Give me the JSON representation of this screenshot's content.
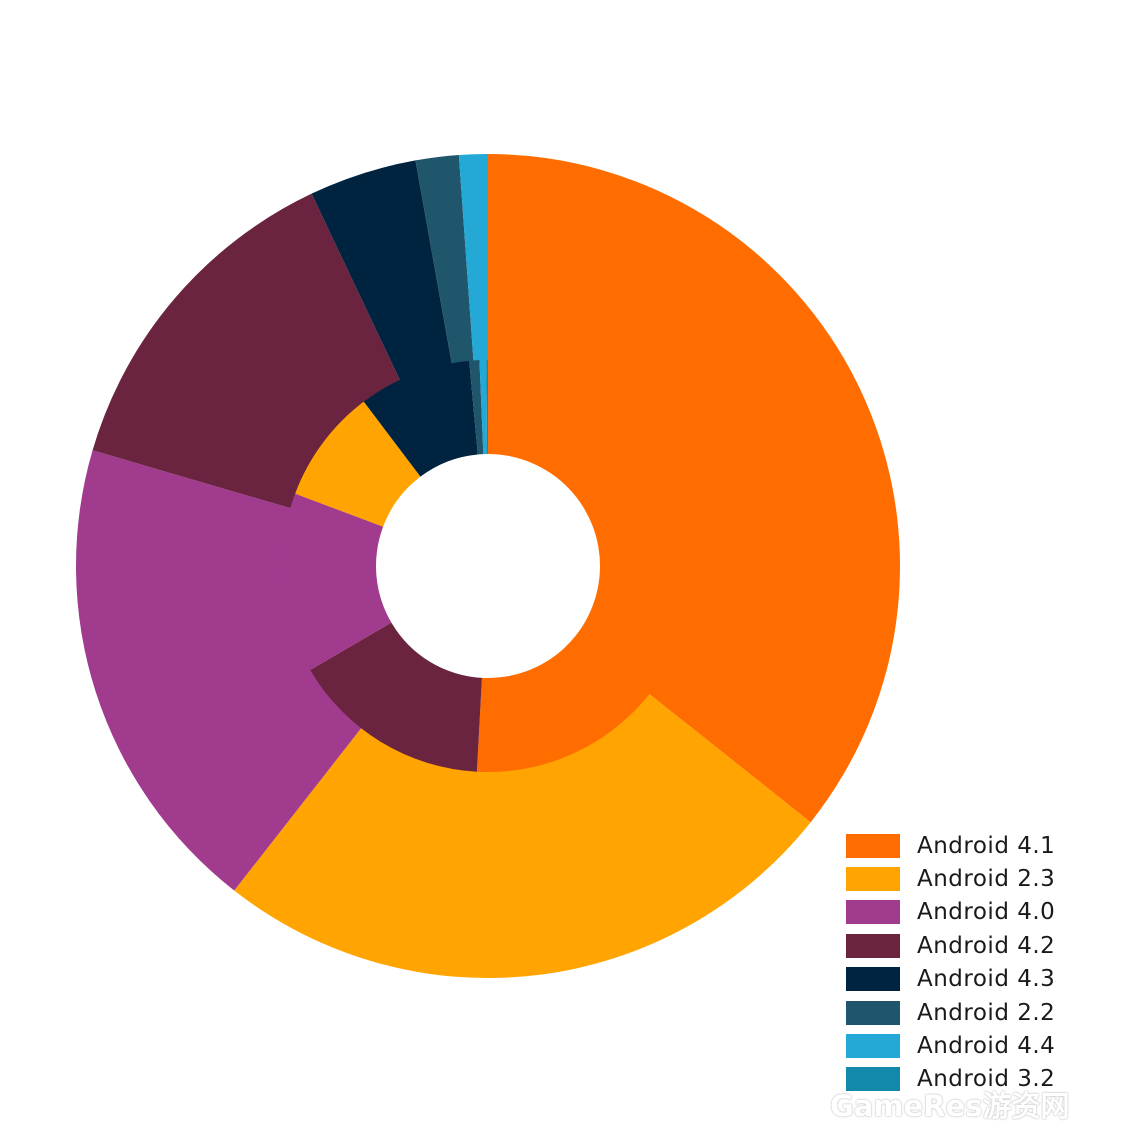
{
  "chart_data": {
    "type": "pie",
    "title": "",
    "rings": [
      {
        "name": "",
        "values": [
          38.0,
          26.5,
          20.2,
          14.3,
          4.5,
          1.8,
          1.2,
          0.0
        ]
      },
      {
        "name": "",
        "values": [
          38.5,
          11.9,
          10.7,
          6.8,
          6.7,
          0.6,
          0.4,
          0.1
        ]
      }
    ],
    "categories": [
      "Android 4.1",
      "Android 2.3",
      "Android 4.0",
      "Android 4.2",
      "Android 4.3",
      "Android 2.2",
      "Android 4.4",
      "Android 3.2"
    ],
    "inner_ring_order": [
      "Android 4.1",
      "Android 4.2",
      "Android 4.0",
      "Android 2.3",
      "Android 4.3",
      "Android 2.2",
      "Android 4.4",
      "Android 3.2"
    ],
    "colors": [
      "#ff6d00",
      "#ffa400",
      "#a03b8e",
      "#6b2440",
      "#002440",
      "#20566b",
      "#24a8d6",
      "#1289ab"
    ],
    "legend_position": "bottom-right"
  },
  "legend": {
    "items": [
      {
        "label": "Android 4.1",
        "color": "#ff6d00"
      },
      {
        "label": "Android 2.3",
        "color": "#ffa400"
      },
      {
        "label": "Android 4.0",
        "color": "#a03b8e"
      },
      {
        "label": "Android 4.2",
        "color": "#6b2440"
      },
      {
        "label": "Android 4.3",
        "color": "#002440"
      },
      {
        "label": "Android 2.2",
        "color": "#20566b"
      },
      {
        "label": "Android 4.4",
        "color": "#24a8d6"
      },
      {
        "label": "Android 3.2",
        "color": "#1289ab"
      }
    ]
  },
  "watermark": {
    "text": "GameRes游资网"
  }
}
